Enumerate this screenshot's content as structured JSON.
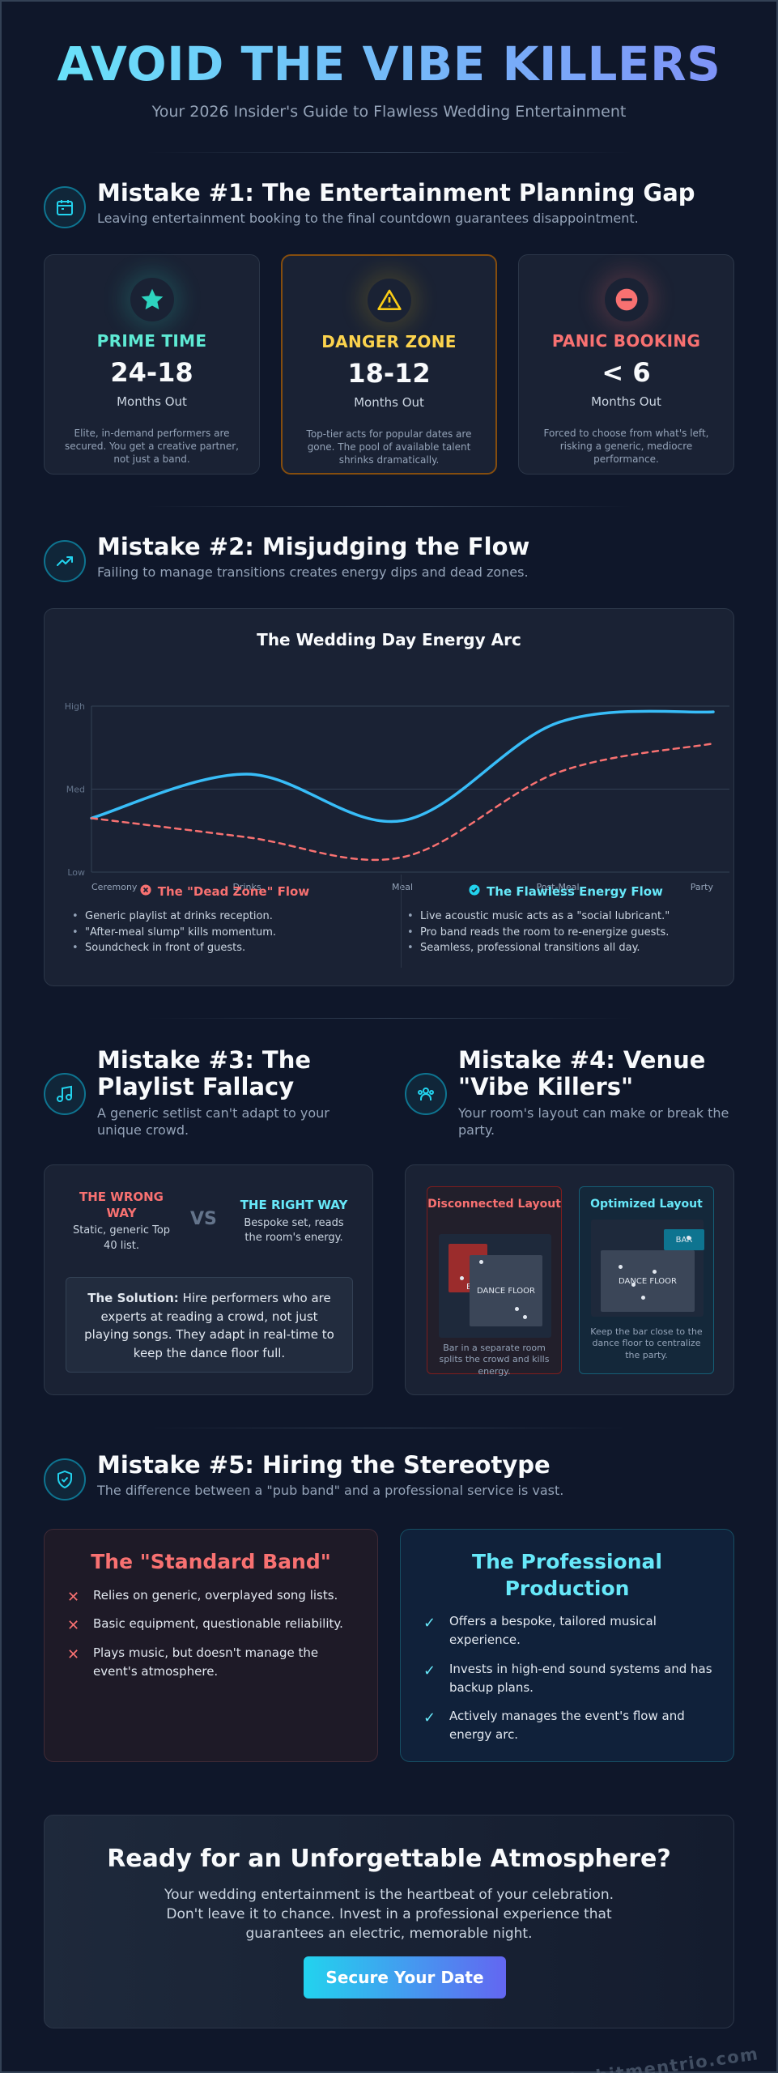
{
  "hero": {
    "title": "AVOID THE VIBE KILLERS",
    "subtitle": "Your 2026 Insider's Guide to Flawless Wedding Entertainment"
  },
  "mistake1": {
    "title": "Mistake #1: The Entertainment Planning Gap",
    "subtitle": "Leaving entertainment booking to the final countdown guarantees disappointment.",
    "icon": "calendar-icon",
    "cards": [
      {
        "icon": "star-icon",
        "color": "#5eead4",
        "phase": "PRIME TIME",
        "range": "24-18",
        "unit": "Months Out",
        "desc": "Elite, in-demand performers are secured. You get a creative partner, not just a band."
      },
      {
        "icon": "warning-icon",
        "color": "#facc15",
        "phase": "DANGER ZONE",
        "range": "18-12",
        "unit": "Months Out",
        "desc": "Top-tier acts for popular dates are gone. The pool of available talent shrinks dramatically."
      },
      {
        "icon": "no-entry-icon",
        "color": "#f87171",
        "phase": "PANIC BOOKING",
        "range": "< 6",
        "unit": "Months Out",
        "desc": "Forced to choose from what's left, risking a generic, mediocre performance."
      }
    ]
  },
  "mistake2": {
    "title": "Mistake #2: Misjudging the Flow",
    "subtitle": "Failing to manage transitions creates energy dips and dead zones.",
    "icon": "trend-icon",
    "dead_zone": {
      "title": "The \"Dead Zone\" Flow",
      "items": [
        "Generic playlist at drinks reception.",
        "\"After-meal slump\" kills momentum.",
        "Soundcheck in front of guests."
      ]
    },
    "flawless": {
      "title": "The Flawless Energy Flow",
      "items": [
        "Live acoustic music acts as a \"social lubricant.\"",
        "Pro band reads the room to re-energize guests.",
        "Seamless, professional transitions all day."
      ]
    }
  },
  "chart_data": {
    "type": "line",
    "title": "The Wedding Day Energy Arc",
    "categories": [
      "Ceremony",
      "Drinks",
      "Meal",
      "Post-Meal",
      "Party"
    ],
    "y_ticks": [
      "Low",
      "Med",
      "High"
    ],
    "ylim": [
      0,
      2
    ],
    "grid": true,
    "series": [
      {
        "style": "solid",
        "color": "#38bdf8",
        "values": [
          0.65,
          1.18,
          0.62,
          1.8,
          1.93
        ]
      },
      {
        "style": "dashed",
        "color": "#f87171",
        "values": [
          0.65,
          0.42,
          0.18,
          1.2,
          1.55
        ]
      }
    ]
  },
  "mistake3": {
    "title": "Mistake #3: The Playlist Fallacy",
    "subtitle": "A generic setlist can't adapt to your unique crowd.",
    "icon": "music-icon",
    "wrong_title": "THE WRONG WAY",
    "wrong_desc": "Static, generic Top 40 list.",
    "vs": "VS",
    "right_title": "THE RIGHT WAY",
    "right_desc": "Bespoke set, reads the room's energy.",
    "solution_label": "The Solution:",
    "solution_text": "Hire performers who are experts at reading a crowd, not just playing songs. They adapt in real-time to keep the dance floor full."
  },
  "mistake4": {
    "title": "Mistake #4: Venue \"Vibe Killers\"",
    "subtitle": "Your room's layout can make or break the party.",
    "icon": "people-icon",
    "bad": {
      "title": "Disconnected Layout",
      "floor": "DANCE FLOOR",
      "bar": "B",
      "caption": "Bar in a separate room splits the crowd and kills energy."
    },
    "good": {
      "title": "Optimized Layout",
      "floor": "DANCE FLOOR",
      "bar": "BAR",
      "caption": "Keep the bar close to the dance floor to centralize the party."
    }
  },
  "mistake5": {
    "title": "Mistake #5: Hiring the Stereotype",
    "subtitle": "The difference between a \"pub band\" and a professional service is vast.",
    "icon": "shield-check-icon",
    "standard": {
      "title": "The \"Standard Band\"",
      "items": [
        "Relies on generic, overplayed song lists.",
        "Basic equipment, questionable reliability.",
        "Plays music, but doesn't manage the event's atmosphere."
      ]
    },
    "professional": {
      "title": "The Professional Production",
      "items": [
        "Offers a bespoke, tailored musical experience.",
        "Invests in high-end sound systems and has backup plans.",
        "Actively manages the event's flow and energy arc."
      ]
    }
  },
  "cta": {
    "title": "Ready for an Unforgettable Atmosphere?",
    "body": "Your wedding entertainment is the heartbeat of your celebration. Don't leave it to chance. Invest in a professional experience that guarantees an electric, memorable night.",
    "button": "Secure Your Date"
  },
  "watermark": "thehitmentrio.com",
  "colors": {
    "background": "#0f172a",
    "accent": "#22d3ee",
    "danger": "#f87171",
    "warning": "#facc15",
    "teal": "#5eead4"
  }
}
